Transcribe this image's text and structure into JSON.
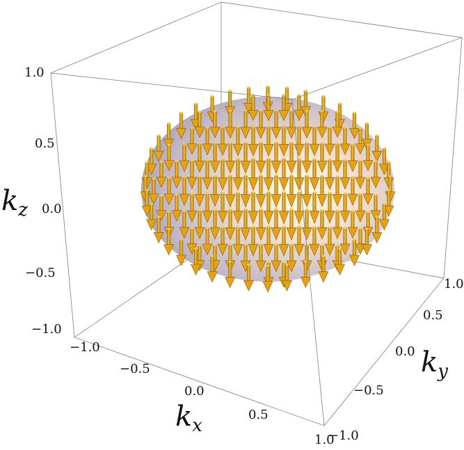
{
  "chart_data": {
    "type": "vector-field-3d",
    "title": "",
    "surface": "unit sphere",
    "vector_field": "spin texture on sphere: arrows point predominantly along -k_z",
    "vector_color": "#e3a21a",
    "sphere_color": "#e9d6c9",
    "axes": {
      "x": {
        "label": "k",
        "sub": "x",
        "range": [
          -1.0,
          1.0
        ],
        "ticks": [
          "-1.0",
          "-0.5",
          "0.0",
          "0.5",
          "1.0"
        ]
      },
      "y": {
        "label": "k",
        "sub": "y",
        "range": [
          -1.0,
          1.0
        ],
        "ticks": [
          "-1.0",
          "-0.5",
          "0.0",
          "0.5",
          "1.0"
        ]
      },
      "z": {
        "label": "k",
        "sub": "z",
        "range": [
          -1.0,
          1.0
        ],
        "ticks": [
          "-1.0",
          "-0.5",
          "0.0",
          "0.5",
          "1.0"
        ]
      }
    },
    "box": true,
    "grid": false,
    "legend": "none"
  }
}
